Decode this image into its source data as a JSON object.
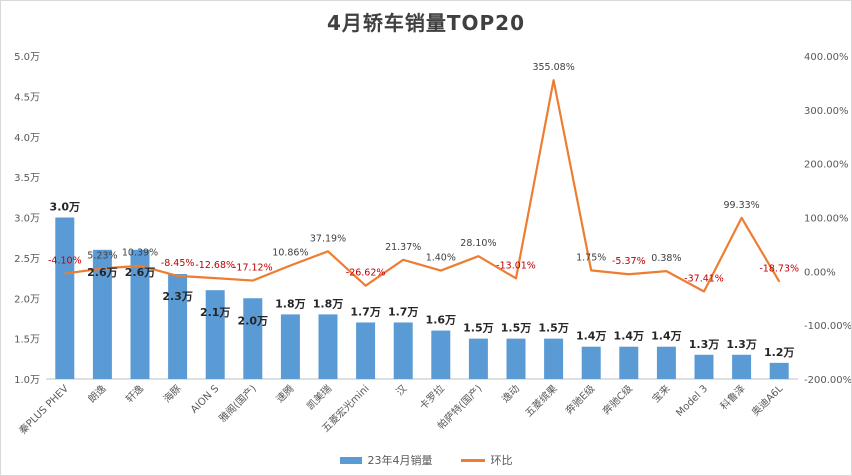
{
  "chart_data": {
    "type": "bar",
    "title": "4月轿车销量TOP20",
    "categories": [
      "秦PLUS PHEV",
      "朗逸",
      "轩逸",
      "海豚",
      "AION S",
      "雅阁(国产)",
      "速腾",
      "凯美瑞",
      "五菱宏光mini",
      "汉",
      "卡罗拉",
      "帕萨特(国产)",
      "逸动",
      "五菱缤果",
      "奔驰E级",
      "奔驰C级",
      "宝来",
      "Model 3",
      "科鲁泽",
      "奥迪A6L"
    ],
    "series": [
      {
        "name": "23年4月销量",
        "type": "bar",
        "axis": "left",
        "color": "#5b9bd5",
        "values": [
          3.0,
          2.6,
          2.6,
          2.3,
          2.1,
          2.0,
          1.8,
          1.8,
          1.7,
          1.7,
          1.6,
          1.5,
          1.5,
          1.5,
          1.4,
          1.4,
          1.4,
          1.3,
          1.3,
          1.2
        ],
        "labels": [
          "3.0万",
          "2.6万",
          "2.6万",
          "2.3万",
          "2.1万",
          "2.0万",
          "1.8万",
          "1.8万",
          "1.7万",
          "1.7万",
          "1.6万",
          "1.5万",
          "1.5万",
          "1.5万",
          "1.4万",
          "1.4万",
          "1.4万",
          "1.3万",
          "1.3万",
          "1.2万"
        ]
      },
      {
        "name": "环比",
        "type": "line",
        "axis": "right",
        "color": "#ed7d31",
        "values": [
          -4.1,
          5.23,
          10.39,
          -8.45,
          -12.68,
          -17.12,
          10.86,
          37.19,
          -26.62,
          21.37,
          1.4,
          28.1,
          -13.01,
          355.08,
          1.75,
          -5.37,
          0.38,
          -37.41,
          99.33,
          -18.73
        ],
        "labels": [
          "-4.10%",
          "5.23%",
          "10.39%",
          "-8.45%",
          "-12.68%",
          "-17.12%",
          "10.86%",
          "37.19%",
          "-26.62%",
          "21.37%",
          "1.40%",
          "28.10%",
          "-13.01%",
          "355.08%",
          "1.75%",
          "-5.37%",
          "0.38%",
          "-37.41%",
          "99.33%",
          "-18.73%"
        ]
      }
    ],
    "y_left": {
      "min": 1.0,
      "max": 5.0,
      "ticks": [
        "1.0万",
        "1.5万",
        "2.0万",
        "2.5万",
        "3.0万",
        "3.5万",
        "4.0万",
        "4.5万",
        "5.0万"
      ]
    },
    "y_right": {
      "min": -200,
      "max": 400,
      "ticks": [
        "-200.00%",
        "-100.00%",
        "0.00%",
        "100.00%",
        "200.00%",
        "300.00%",
        "400.00%"
      ]
    },
    "negative_label_color": "#c00000",
    "grid": false,
    "legend_position": "bottom"
  }
}
